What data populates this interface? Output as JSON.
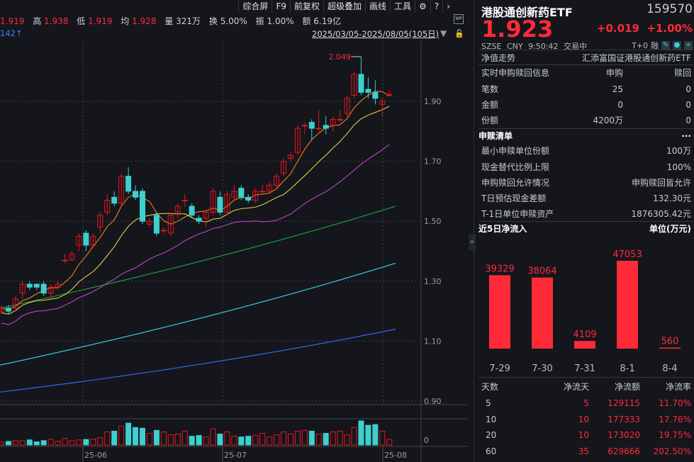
{
  "toolbar": {
    "items": [
      "综合屏",
      "F9",
      "前复权",
      "超级叠加",
      "画线",
      "工具"
    ],
    "settings_icon": "gear-icon",
    "help_icon": "question-icon",
    "next_icon": "chevron-right-icon"
  },
  "quote_bar": {
    "open": "1.919",
    "high_label": "高",
    "high": "1.938",
    "low_label": "低",
    "low": "1.919",
    "avg_label": "均",
    "avg": "1.928",
    "vol_label": "量",
    "vol": "321万",
    "turn_label": "换",
    "turn": "5.00%",
    "amp_label": "振",
    "amp": "1.00%",
    "amt_label": "额",
    "amt": "6.19亿"
  },
  "indicator_fragment": "142↑",
  "range": "2025/03/05-2025/08/05(105日)",
  "chart": {
    "y_ticks": [
      "1.90",
      "1.70",
      "1.50",
      "1.30",
      "1.10",
      "0.90"
    ],
    "x_ticks": [
      "25-06",
      "25-07",
      "25-08"
    ],
    "vol_tick": "0",
    "max_label": "2.049",
    "up_color": "#e8141e",
    "down_color": "#3ecfcf",
    "ohlc": [
      [
        1.2,
        1.21,
        1.22,
        1.19
      ],
      [
        1.21,
        1.2,
        1.22,
        1.19
      ],
      [
        1.21,
        1.24,
        1.25,
        1.2
      ],
      [
        1.26,
        1.29,
        1.3,
        1.24
      ],
      [
        1.29,
        1.28,
        1.3,
        1.27
      ],
      [
        1.29,
        1.28,
        1.29,
        1.27
      ],
      [
        1.29,
        1.26,
        1.3,
        1.25
      ],
      [
        1.26,
        1.28,
        1.29,
        1.25
      ],
      [
        1.28,
        1.29,
        1.3,
        1.27
      ],
      [
        1.37,
        1.37,
        1.39,
        1.36
      ],
      [
        1.37,
        1.39,
        1.4,
        1.37
      ],
      [
        1.42,
        1.45,
        1.46,
        1.4
      ],
      [
        1.46,
        1.42,
        1.47,
        1.4
      ],
      [
        1.42,
        1.45,
        1.46,
        1.41
      ],
      [
        1.48,
        1.52,
        1.53,
        1.46
      ],
      [
        1.53,
        1.57,
        1.59,
        1.52
      ],
      [
        1.58,
        1.56,
        1.6,
        1.55
      ],
      [
        1.56,
        1.65,
        1.66,
        1.55
      ],
      [
        1.65,
        1.6,
        1.68,
        1.59
      ],
      [
        1.6,
        1.58,
        1.62,
        1.57
      ],
      [
        1.6,
        1.5,
        1.61,
        1.49
      ],
      [
        1.49,
        1.5,
        1.51,
        1.48
      ],
      [
        1.52,
        1.46,
        1.53,
        1.45
      ],
      [
        1.47,
        1.47,
        1.48,
        1.46
      ],
      [
        1.46,
        1.52,
        1.53,
        1.45
      ],
      [
        1.53,
        1.55,
        1.56,
        1.51
      ],
      [
        1.57,
        1.57,
        1.59,
        1.55
      ],
      [
        1.55,
        1.52,
        1.56,
        1.51
      ],
      [
        1.51,
        1.5,
        1.52,
        1.49
      ],
      [
        1.51,
        1.53,
        1.54,
        1.48
      ],
      [
        1.53,
        1.6,
        1.61,
        1.52
      ],
      [
        1.58,
        1.53,
        1.6,
        1.52
      ],
      [
        1.53,
        1.59,
        1.6,
        1.52
      ],
      [
        1.58,
        1.6,
        1.62,
        1.57
      ],
      [
        1.61,
        1.58,
        1.62,
        1.57
      ],
      [
        1.58,
        1.57,
        1.59,
        1.56
      ],
      [
        1.57,
        1.6,
        1.61,
        1.56
      ],
      [
        1.6,
        1.6,
        1.62,
        1.59
      ],
      [
        1.6,
        1.62,
        1.63,
        1.59
      ],
      [
        1.62,
        1.65,
        1.66,
        1.61
      ],
      [
        1.66,
        1.7,
        1.71,
        1.65
      ],
      [
        1.71,
        1.72,
        1.73,
        1.7
      ],
      [
        1.73,
        1.81,
        1.82,
        1.72
      ],
      [
        1.82,
        1.82,
        1.83,
        1.79
      ],
      [
        1.83,
        1.81,
        1.84,
        1.77
      ],
      [
        1.81,
        1.81,
        1.87,
        1.8
      ],
      [
        1.82,
        1.81,
        1.85,
        1.79
      ],
      [
        1.82,
        1.84,
        1.85,
        1.8
      ],
      [
        1.84,
        1.84,
        1.87,
        1.83
      ],
      [
        1.86,
        1.91,
        1.92,
        1.85
      ],
      [
        1.92,
        1.99,
        2.0,
        1.91
      ],
      [
        1.99,
        1.93,
        2.049,
        1.92
      ],
      [
        1.94,
        1.93,
        1.98,
        1.91
      ],
      [
        1.93,
        1.91,
        1.97,
        1.89
      ],
      [
        1.89,
        1.9,
        1.91,
        1.85
      ],
      [
        1.919,
        1.923,
        1.938,
        1.919
      ]
    ],
    "volume": [
      20,
      25,
      30,
      28,
      35,
      22,
      30,
      40,
      25,
      45,
      30,
      35,
      38,
      40,
      50,
      90,
      95,
      130,
      150,
      120,
      115,
      80,
      100,
      90,
      70,
      75,
      95,
      60,
      65,
      55,
      110,
      75,
      90,
      60,
      55,
      60,
      65,
      80,
      55,
      70,
      90,
      75,
      95,
      100,
      95,
      75,
      80,
      90,
      95,
      70,
      120,
      165,
      135,
      140,
      95,
      38
    ]
  },
  "panel": {
    "name": "港股通创新药ETF",
    "code": "159570",
    "price": "1.923",
    "change": "+0.019",
    "change_pct": "+1.00%",
    "exchange": "SZSE",
    "currency": "CNY",
    "time": "9:50:42",
    "status": "交易中",
    "t0": "T+0",
    "margin": "融",
    "nav_label": "净值走势",
    "fund_full_name": "汇添富国证港股通创新药ETF",
    "realtime": {
      "title": "实时申购赎回信息",
      "col_sub": "申购",
      "col_red": "赎回",
      "rows": [
        {
          "label": "笔数",
          "sub": "25",
          "red": "0"
        },
        {
          "label": "金额",
          "sub": "0",
          "red": "0"
        },
        {
          "label": "份额",
          "sub": "4200万",
          "red": "0"
        }
      ]
    },
    "list": {
      "title": "申赎清单",
      "more": "···",
      "rows": [
        {
          "label": "最小申赎单位份额",
          "value": "100万"
        },
        {
          "label": "现金替代比例上限",
          "value": "100%"
        },
        {
          "label": "申购赎回允许情况",
          "value": "申购赎回皆允许"
        },
        {
          "label": "T日预估现金差额",
          "value": "132.30元"
        },
        {
          "label": "T-1日单位申赎资产",
          "value": "1876305.42元"
        }
      ]
    },
    "inflow": {
      "title": "近5日净流入",
      "unit": "单位(万元)",
      "bar_color": "#ff2a38",
      "bars": [
        {
          "date": "7-29",
          "value": 39329
        },
        {
          "date": "7-30",
          "value": 38064
        },
        {
          "date": "7-31",
          "value": 4109
        },
        {
          "date": "8-1",
          "value": 47053
        },
        {
          "date": "8-4",
          "value": 560
        }
      ]
    },
    "flow": {
      "headers": [
        "天数",
        "净流天",
        "净流额",
        "净流率"
      ],
      "rows": [
        [
          "5",
          "5",
          "129115",
          "11.70%"
        ],
        [
          "10",
          "10",
          "177333",
          "17.76%"
        ],
        [
          "20",
          "10",
          "173020",
          "19.75%"
        ],
        [
          "60",
          "35",
          "629666",
          "202.50%"
        ]
      ]
    }
  }
}
